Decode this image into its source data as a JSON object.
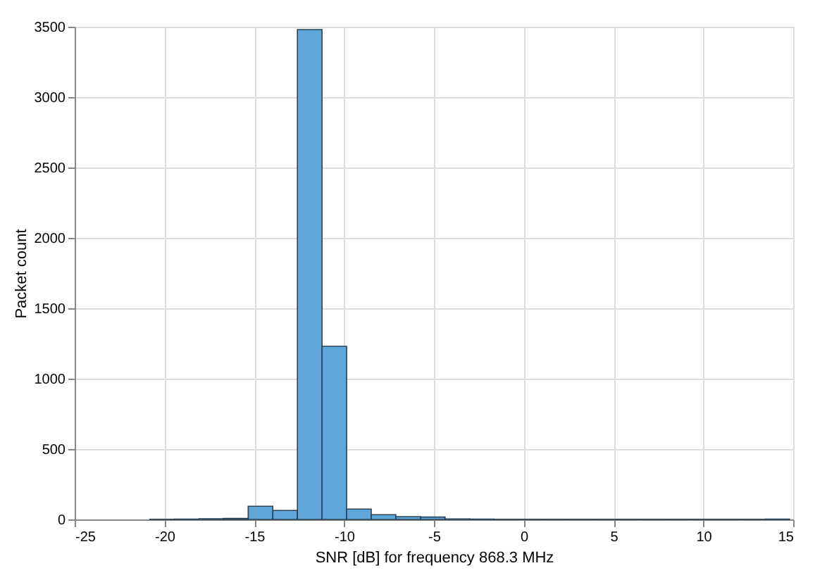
{
  "chart_data": {
    "type": "histogram",
    "xlabel": "SNR [dB] for frequency 868.3 MHz",
    "ylabel": "Packet count",
    "bins": [
      -20.82,
      -19.45,
      -18.08,
      -16.71,
      -15.34,
      -13.97,
      -12.6,
      -11.23,
      -9.86,
      -8.49,
      -7.12,
      -5.75,
      -4.38,
      -3.01,
      -1.64,
      -0.27,
      1.1,
      2.47,
      3.84,
      5.21,
      6.58,
      7.95,
      9.32,
      10.69,
      12.06,
      13.43,
      14.8
    ],
    "values": [
      1,
      2,
      5,
      7,
      94,
      64,
      3480,
      1230,
      74,
      34,
      20,
      17,
      3,
      2,
      1,
      1,
      1,
      1,
      1,
      1,
      1,
      1,
      1,
      1,
      1,
      2
    ],
    "color": "#5fa6da",
    "xlim": [
      -25,
      15
    ],
    "xticks": [
      -25,
      -20,
      -15,
      -10,
      -5,
      0,
      5,
      10,
      15
    ],
    "ylim": [
      0,
      3500
    ],
    "yticks": [
      0,
      500,
      1000,
      1500,
      2000,
      2500,
      3000,
      3500
    ],
    "grid": true
  }
}
